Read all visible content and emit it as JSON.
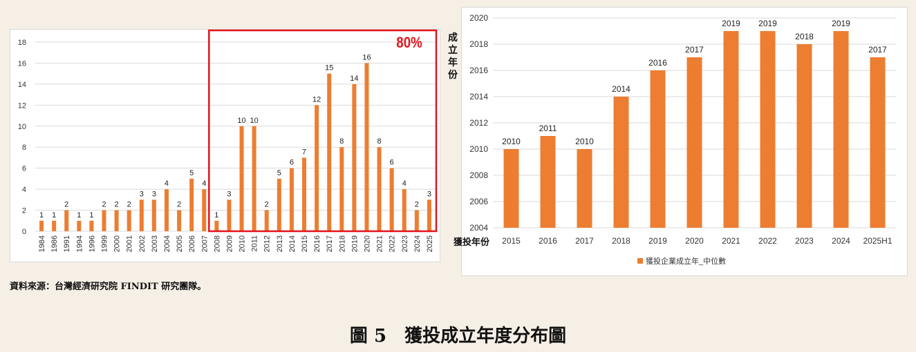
{
  "colors": {
    "bar": "#ed7d31",
    "highlight": "#e3141b",
    "grid": "#d9d9d9"
  },
  "highlight_label": "80%",
  "source_note": "資料來源：台灣經濟研究院 FINDIT 研究團隊。",
  "figure_caption": "圖 5　獲投成立年度分布圖",
  "right_ylabel": "成立年份",
  "right_xlabel": "獲投年份",
  "chart_data": [
    {
      "type": "bar",
      "title": "",
      "xlabel": "",
      "ylabel": "",
      "ylim": [
        0,
        18
      ],
      "yticks": [
        0,
        2,
        4,
        6,
        8,
        10,
        12,
        14,
        16,
        18
      ],
      "grid": true,
      "data_labels": true,
      "highlight_range": [
        "2008",
        "2025"
      ],
      "highlight_text": "80%",
      "categories": [
        "1984",
        "1986",
        "1991",
        "1994",
        "1996",
        "1999",
        "2000",
        "2001",
        "2002",
        "2003",
        "2004",
        "2005",
        "2006",
        "2007",
        "2008",
        "2009",
        "2010",
        "2011",
        "2012",
        "2013",
        "2014",
        "2015",
        "2016",
        "2017",
        "2018",
        "2019",
        "2020",
        "2021",
        "2022",
        "2023",
        "2024",
        "2025"
      ],
      "values": [
        1,
        1,
        2,
        1,
        1,
        2,
        2,
        2,
        3,
        3,
        4,
        2,
        5,
        4,
        1,
        3,
        10,
        10,
        2,
        5,
        6,
        7,
        12,
        15,
        8,
        14,
        16,
        8,
        6,
        4,
        2,
        3
      ]
    },
    {
      "type": "bar",
      "title": "",
      "xlabel": "獲投年份",
      "ylabel": "成立年份",
      "ylim": [
        2004,
        2020
      ],
      "yticks": [
        2004,
        2006,
        2008,
        2010,
        2012,
        2014,
        2016,
        2018,
        2020
      ],
      "grid": true,
      "data_labels": true,
      "legend": "bottom",
      "categories": [
        "2015",
        "2016",
        "2017",
        "2018",
        "2019",
        "2020",
        "2021",
        "2022",
        "2023",
        "2024",
        "2025H1"
      ],
      "series": [
        {
          "name": "獲投企業成立年_中位數",
          "values": [
            2010,
            2011,
            2010,
            2014,
            2016,
            2017,
            2019,
            2019,
            2018,
            2019,
            2017
          ]
        }
      ]
    }
  ]
}
